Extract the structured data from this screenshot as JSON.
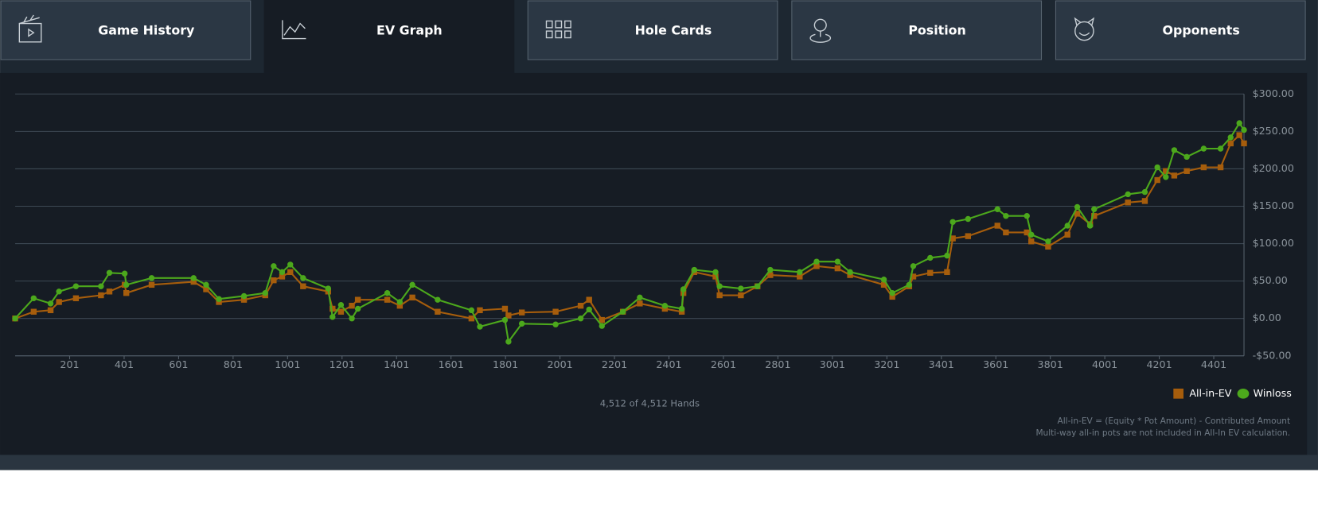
{
  "tabs": [
    "Game History",
    "EV Graph",
    "Hole Cards",
    "Position",
    "Opponents"
  ],
  "active_tab": 1,
  "chart_data": {
    "type": "line",
    "x": [
      1,
      69,
      131,
      162,
      224,
      316,
      347,
      403,
      409,
      502,
      656,
      702,
      749,
      841,
      919,
      950,
      981,
      1011,
      1058,
      1150,
      1166,
      1197,
      1237,
      1259,
      1367,
      1413,
      1459,
      1552,
      1676,
      1707,
      1799,
      1812,
      1861,
      1985,
      2077,
      2108,
      2155,
      2232,
      2294,
      2386,
      2448,
      2454,
      2494,
      2572,
      2587,
      2665,
      2726,
      2773,
      2881,
      2943,
      3020,
      3066,
      3190,
      3221,
      3283,
      3298,
      3360,
      3422,
      3443,
      3499,
      3607,
      3638,
      3715,
      3731,
      3793,
      3864,
      3900,
      3947,
      3962,
      4086,
      4148,
      4194,
      4225,
      4256,
      4302,
      4364,
      4426,
      4463,
      4495,
      4512
    ],
    "series": [
      {
        "name": "All-in-EV",
        "color": "#a65d0c",
        "marker": "square",
        "values": [
          0,
          9,
          11,
          22,
          27,
          31,
          36,
          45,
          34,
          45,
          49,
          39,
          22,
          25,
          31,
          51,
          56,
          62,
          43,
          36,
          13,
          9,
          17,
          25,
          25,
          17,
          28,
          9,
          0,
          11,
          13,
          4,
          8,
          9,
          17,
          25,
          -2,
          9,
          20,
          13,
          9,
          34,
          62,
          56,
          31,
          31,
          43,
          58,
          56,
          70,
          67,
          58,
          45,
          29,
          43,
          56,
          61,
          62,
          107,
          110,
          124,
          115,
          115,
          103,
          96,
          112,
          140,
          126,
          137,
          155,
          157,
          185,
          197,
          191,
          197,
          202,
          202,
          234,
          245,
          234
        ]
      },
      {
        "name": "Winloss",
        "color": "#4ca81c",
        "marker": "circle",
        "values": [
          0,
          27,
          20,
          36,
          43,
          43,
          61,
          60,
          45,
          54,
          54,
          45,
          26,
          30,
          34,
          70,
          62,
          72,
          54,
          40,
          2,
          18,
          0,
          13,
          34,
          22,
          45,
          25,
          11,
          -11,
          -2,
          -31,
          -7,
          -8,
          0,
          12,
          -10,
          9,
          28,
          17,
          13,
          39,
          65,
          62,
          43,
          40,
          43,
          65,
          62,
          76,
          76,
          62,
          52,
          34,
          45,
          70,
          81,
          84,
          129,
          133,
          146,
          137,
          137,
          112,
          103,
          124,
          149,
          124,
          146,
          166,
          169,
          202,
          189,
          225,
          216,
          227,
          227,
          242,
          261,
          252
        ]
      }
    ],
    "xlim": [
      1,
      4512
    ],
    "xticks": [
      201,
      401,
      601,
      801,
      1001,
      1201,
      1401,
      1601,
      1801,
      2001,
      2201,
      2401,
      2601,
      2801,
      3001,
      3201,
      3401,
      3601,
      3801,
      4001,
      4201,
      4401
    ],
    "ylim": [
      -50,
      300
    ],
    "yticks": [
      {
        "value": -50,
        "label": "-$50.00"
      },
      {
        "value": 0,
        "label": "$0.00"
      },
      {
        "value": 50,
        "label": "$50.00"
      },
      {
        "value": 100,
        "label": "$100.00"
      },
      {
        "value": 150,
        "label": "$150.00"
      },
      {
        "value": 200,
        "label": "$200.00"
      },
      {
        "value": 250,
        "label": "$250.00"
      },
      {
        "value": 300,
        "label": "$300.00"
      }
    ],
    "grid": true,
    "legend": "lower right"
  },
  "hand_count": "4,512 of 4,512 Hands",
  "notes": [
    "All-in-EV = (Equity * Pot Amount) - Contributed Amount",
    "Multi-way all-in pots are not included in All-In EV calculation."
  ]
}
